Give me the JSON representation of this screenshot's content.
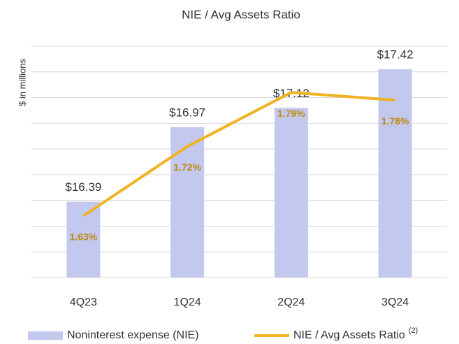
{
  "chart_data": {
    "type": "bar_line",
    "title": "NIE / Avg Assets Ratio",
    "y_label": "$ in millions",
    "categories": [
      "4Q23",
      "1Q24",
      "2Q24",
      "3Q24"
    ],
    "series": [
      {
        "name": "Noninterest expense (NIE)",
        "type": "bar",
        "color": "#c3c8ef",
        "values": [
          16.39,
          16.97,
          17.12,
          17.42
        ],
        "value_labels": [
          "$16.39",
          "$16.97",
          "$17.12",
          "$17.42"
        ]
      },
      {
        "name": "NIE / Avg Assets Ratio",
        "name_note": "(2)",
        "type": "line",
        "axis": "y2",
        "color": "#f0b323",
        "label_color": "#c08a12",
        "values": [
          1.63,
          1.72,
          1.79,
          1.78
        ],
        "value_labels": [
          "1.63%",
          "1.72%",
          "1.79%",
          "1.78%"
        ]
      }
    ],
    "ylim": [
      15.8,
      17.6
    ],
    "yticks": [
      15.8,
      16.0,
      16.2,
      16.4,
      16.6,
      16.8,
      17.0,
      17.2,
      17.4,
      17.6
    ],
    "y2lim": [
      1.55,
      1.85
    ],
    "grid": true,
    "legend": "bottom"
  }
}
